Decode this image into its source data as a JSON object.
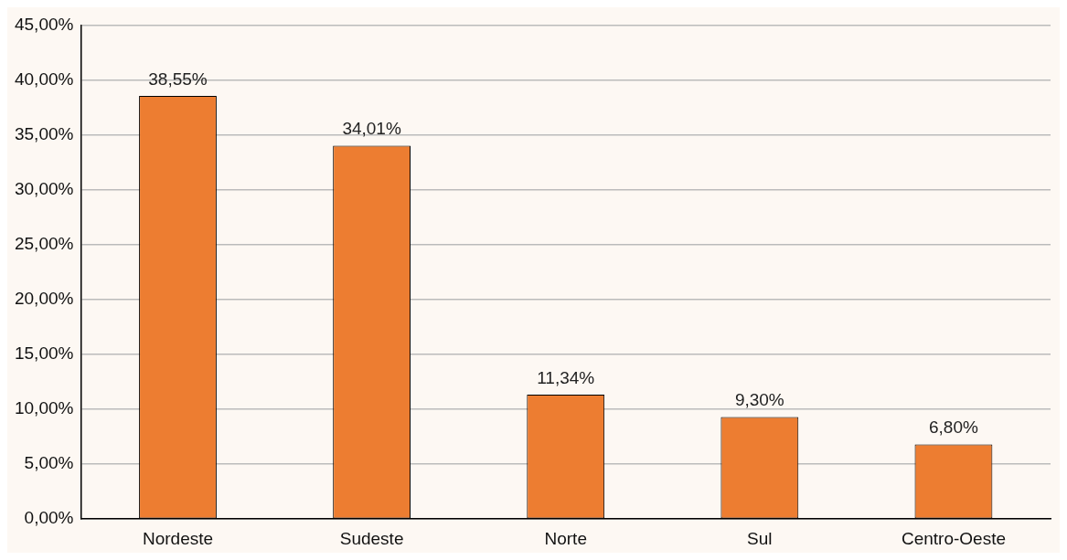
{
  "chart_data": {
    "type": "bar",
    "categories": [
      "Nordeste",
      "Sudeste",
      "Norte",
      "Sul",
      "Centro-Oeste"
    ],
    "values": [
      38.55,
      34.01,
      11.34,
      9.3,
      6.8
    ],
    "color": "#ed7d31",
    "value_labels": [
      "38,55%",
      "34,01%",
      "11,34%",
      "9,30%",
      "6,80%"
    ],
    "ylim": [
      0,
      45
    ],
    "yticks": [
      {
        "value": 0,
        "label": "0,00%"
      },
      {
        "value": 5,
        "label": "5,00%"
      },
      {
        "value": 10,
        "label": "10,00%"
      },
      {
        "value": 15,
        "label": "15,00%"
      },
      {
        "value": 20,
        "label": "20,00%"
      },
      {
        "value": 25,
        "label": "25,00%"
      },
      {
        "value": 30,
        "label": "30,00%"
      },
      {
        "value": 35,
        "label": "35,00%"
      },
      {
        "value": 40,
        "label": "40,00%"
      },
      {
        "value": 45,
        "label": "45,00%"
      }
    ],
    "grid": "y",
    "legend": false
  }
}
